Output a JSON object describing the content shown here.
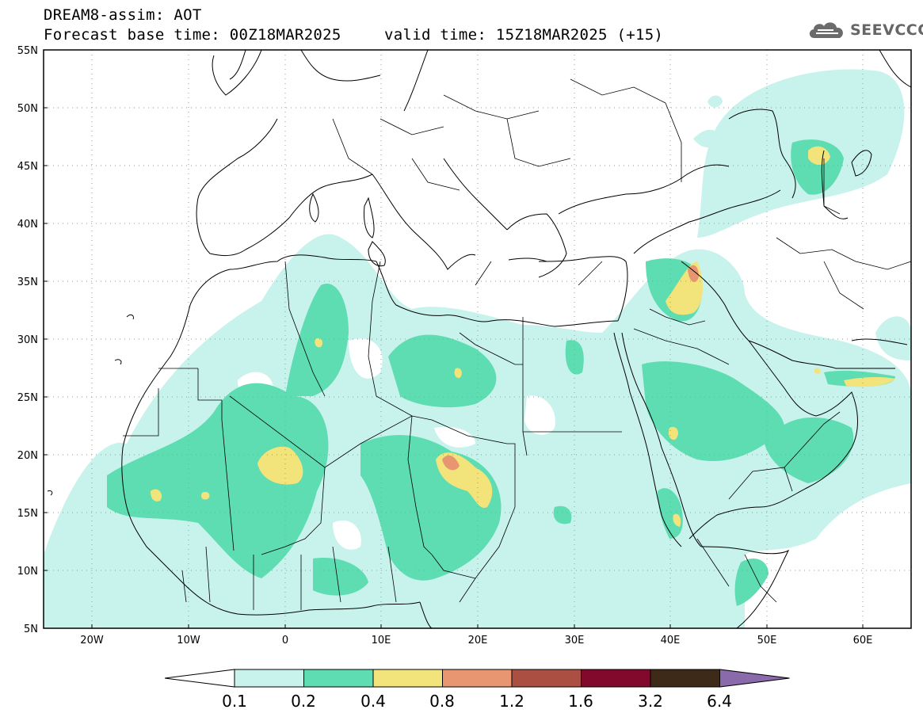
{
  "header": {
    "title": "DREAM8-assim: AOT",
    "base_time": "Forecast base time: 00Z18MAR2025",
    "valid_time": "valid time: 15Z18MAR2025 (+15)",
    "logo": {
      "text": "SEEVCCC",
      "icon": "cloud-icon"
    }
  },
  "map": {
    "lat_labels": [
      "55N",
      "50N",
      "45N",
      "40N",
      "35N",
      "30N",
      "25N",
      "20N",
      "15N",
      "10N",
      "5N"
    ],
    "lon_labels": [
      "20W",
      "10W",
      "0",
      "10E",
      "20E",
      "30E",
      "40E",
      "50E",
      "60E"
    ],
    "lon_range": [
      -25,
      65
    ],
    "lat_range": [
      5,
      55
    ],
    "grid": "dotted"
  },
  "legend": {
    "bins": [
      {
        "color": "#c8f2ec"
      },
      {
        "color": "#5edcb2"
      },
      {
        "color": "#f2e47a"
      },
      {
        "color": "#e89672"
      },
      {
        "color": "#aa4f42"
      },
      {
        "color": "#82082c"
      },
      {
        "color": "#3e2a18"
      }
    ],
    "low_color": "#ffffff",
    "high_color": "#8a6aaa",
    "labels": [
      "0.1",
      "0.2",
      "0.4",
      "0.8",
      "1.2",
      "1.6",
      "3.2",
      "6.4"
    ]
  }
}
